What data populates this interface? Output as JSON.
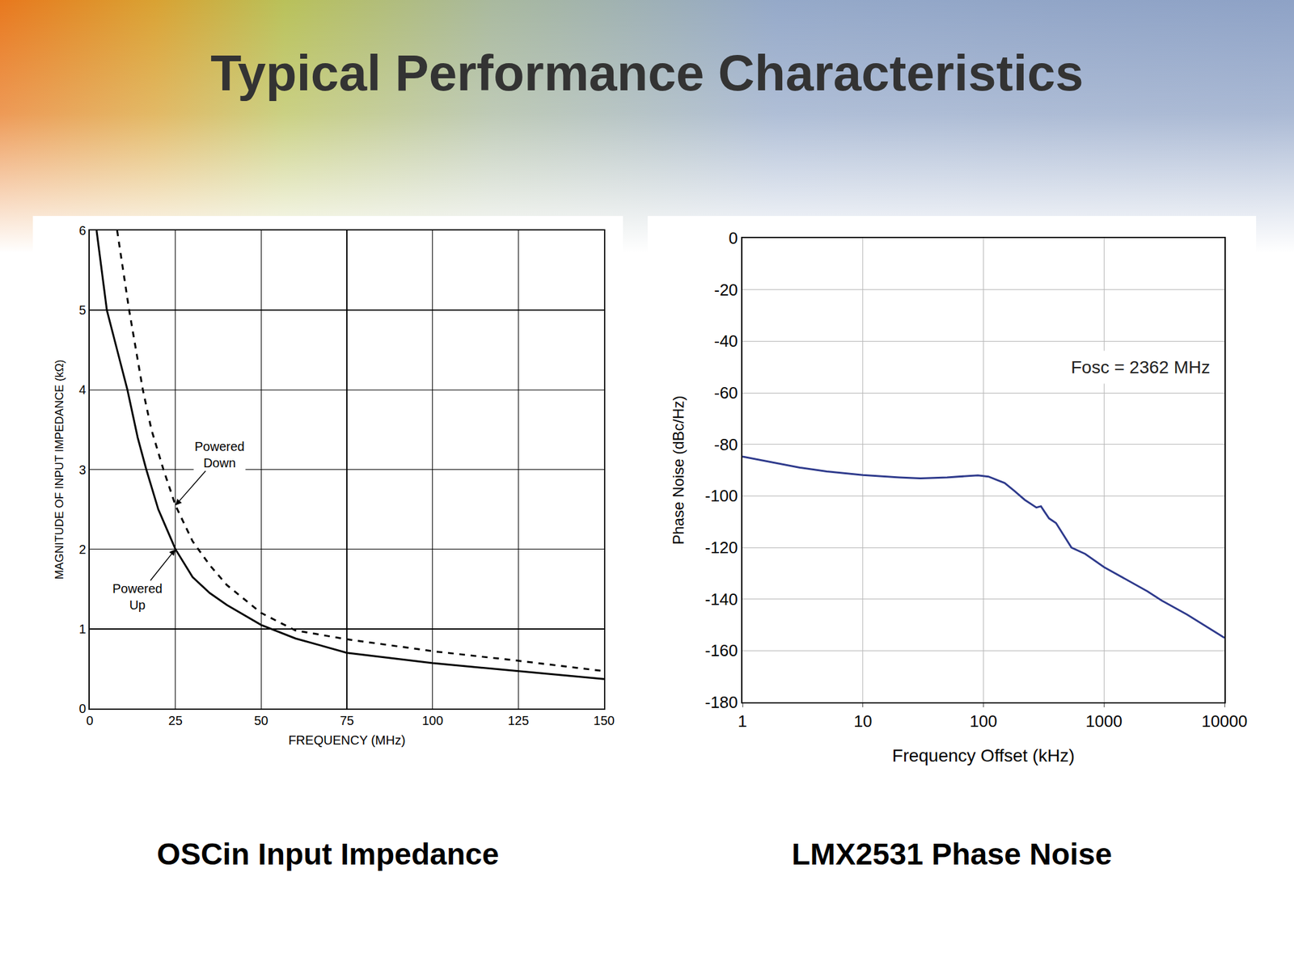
{
  "title": "Typical Performance Characteristics",
  "chart_data": [
    {
      "type": "line",
      "title": "OSCin Input Impedance",
      "x_label": "FREQUENCY (MHz)",
      "y_label": "MAGNITUDE OF INPUT IMPEDANCE (kΩ)",
      "xlim": [
        0,
        150
      ],
      "xticks": [
        0,
        25,
        50,
        75,
        100,
        125,
        150
      ],
      "ylim": [
        0,
        6
      ],
      "yticks": [
        0,
        1,
        2,
        3,
        4,
        5,
        6
      ],
      "grid": true,
      "series": [
        {
          "name": "Powered Up",
          "color": "#000000",
          "line_style": "solid",
          "x": [
            2,
            5,
            8,
            11,
            14,
            16.5,
            20,
            25,
            30,
            35,
            40,
            50,
            60,
            75,
            100,
            125,
            150
          ],
          "values": [
            6,
            5,
            4.5,
            4,
            3.4,
            3,
            2.5,
            2,
            1.65,
            1.45,
            1.3,
            1.05,
            0.88,
            0.7,
            0.57,
            0.47,
            0.37
          ]
        },
        {
          "name": "Powered Down",
          "color": "#000000",
          "line_style": "dash",
          "x": [
            8,
            11.5,
            15.5,
            18,
            21.5,
            25,
            30,
            35,
            40,
            50,
            60,
            75,
            100,
            125,
            150
          ],
          "values": [
            6,
            5,
            4,
            3.5,
            3,
            2.55,
            2.1,
            1.8,
            1.55,
            1.2,
            0.98,
            0.87,
            0.72,
            0.6,
            0.47
          ]
        }
      ],
      "annotations": [
        {
          "text": "Powered Down",
          "x": 25,
          "y": 2.55
        },
        {
          "text": "Powered Up",
          "x": 25,
          "y": 2
        }
      ]
    },
    {
      "type": "line",
      "title": "LMX2531 Phase Noise",
      "x_label": "Frequency Offset (kHz)",
      "y_label": "Phase Noise (dBc/Hz)",
      "log": "x",
      "xlim": [
        1,
        10000
      ],
      "xticks": [
        1,
        10,
        100,
        1000,
        10000
      ],
      "ylim": [
        -180,
        0
      ],
      "yticks": [
        -180,
        -160,
        -140,
        -120,
        -100,
        -80,
        -60,
        -40,
        -20,
        0
      ],
      "grid": true,
      "series": [
        {
          "name": "Phase Noise",
          "color": "#2e3a8c",
          "line_style": "solid",
          "x": [
            1,
            2,
            3,
            5,
            10,
            20,
            30,
            50,
            70,
            90,
            110,
            150,
            180,
            220,
            275,
            300,
            320,
            350,
            400,
            537,
            700,
            1000,
            2300,
            3000,
            4900,
            7000,
            10000
          ],
          "values": [
            -84.7,
            -87.5,
            -89,
            -90.5,
            -91.9,
            -92.8,
            -93.2,
            -92.8,
            -92.3,
            -92,
            -92.5,
            -95,
            -98,
            -101.5,
            -104.5,
            -104,
            -106,
            -108.7,
            -110.5,
            -120,
            -122.5,
            -127.6,
            -137,
            -140.5,
            -146,
            -150.5,
            -155
          ]
        }
      ],
      "annotations": [
        {
          "text": "Fosc = 2362 MHz",
          "x": 2000,
          "y": -50
        }
      ]
    }
  ]
}
